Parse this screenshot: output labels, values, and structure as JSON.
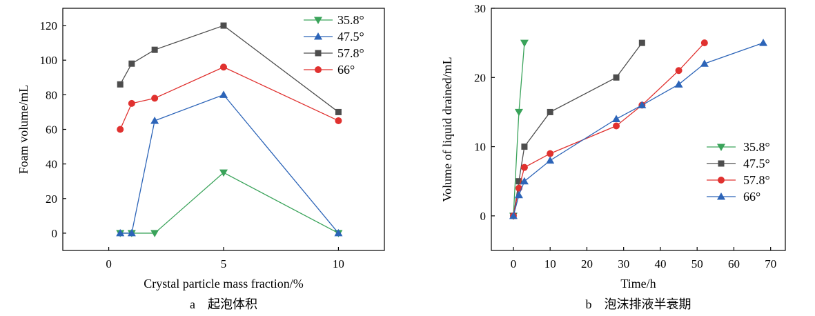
{
  "chart_data": [
    {
      "type": "line",
      "caption": "a　起泡体积",
      "xlabel": "Crystal particle mass fraction/%",
      "ylabel": "Foam volume/mL",
      "xlim": [
        -2,
        12
      ],
      "ylim": [
        -10,
        130
      ],
      "xticks": [
        0,
        5,
        10
      ],
      "yticks": [
        0,
        20,
        40,
        60,
        80,
        100,
        120
      ],
      "legend_position": "top-right",
      "series": [
        {
          "name": "35.8°",
          "color": "#3aa35a",
          "marker": "triangle-down",
          "x": [
            0.5,
            1,
            2,
            5,
            10
          ],
          "y": [
            0,
            0,
            0,
            35,
            0
          ]
        },
        {
          "name": "47.5°",
          "color": "#2c64b8",
          "marker": "triangle-up",
          "x": [
            0.5,
            1,
            2,
            5,
            10
          ],
          "y": [
            0,
            0,
            65,
            80,
            0
          ]
        },
        {
          "name": "57.8°",
          "color": "#4d4d4d",
          "marker": "square",
          "x": [
            0.5,
            1,
            2,
            5,
            10
          ],
          "y": [
            86,
            98,
            106,
            120,
            70
          ]
        },
        {
          "name": "66°",
          "color": "#e0312f",
          "marker": "circle",
          "x": [
            0.5,
            1,
            2,
            5,
            10
          ],
          "y": [
            60,
            75,
            78,
            96,
            65
          ]
        }
      ]
    },
    {
      "type": "line",
      "caption": "b　泡沫排液半衰期",
      "xlabel": "Time/h",
      "ylabel": "Volume of liquid drained/mL",
      "xlim": [
        -6,
        74
      ],
      "ylim": [
        -5,
        30
      ],
      "xticks": [
        0,
        10,
        20,
        30,
        40,
        50,
        60,
        70
      ],
      "yticks": [
        0,
        10,
        20,
        30
      ],
      "legend_position": "right",
      "series": [
        {
          "name": "35.8°",
          "color": "#3aa35a",
          "marker": "triangle-down",
          "x": [
            0,
            1.5,
            3
          ],
          "y": [
            0,
            15,
            25
          ]
        },
        {
          "name": "47.5°",
          "color": "#4d4d4d",
          "marker": "square",
          "x": [
            0,
            1.5,
            3,
            10,
            28,
            35
          ],
          "y": [
            0,
            5,
            10,
            15,
            20,
            25
          ]
        },
        {
          "name": "57.8°",
          "color": "#e0312f",
          "marker": "circle",
          "x": [
            0,
            1.5,
            3,
            10,
            28,
            35,
            45,
            52
          ],
          "y": [
            0,
            4,
            7,
            9,
            13,
            16,
            21,
            25
          ]
        },
        {
          "name": "66°",
          "color": "#2c64b8",
          "marker": "triangle-up",
          "x": [
            0,
            1.5,
            3,
            10,
            28,
            35,
            45,
            52,
            68
          ],
          "y": [
            0,
            3,
            5,
            8,
            14,
            16,
            19,
            22,
            25
          ]
        }
      ]
    }
  ]
}
